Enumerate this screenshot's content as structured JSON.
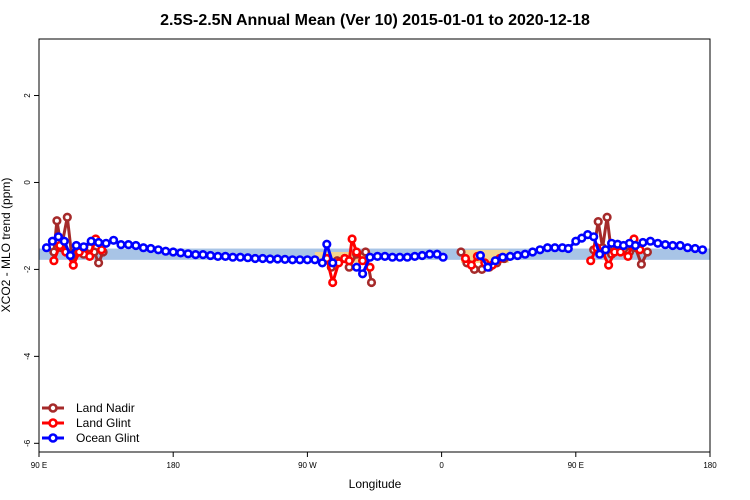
{
  "chart_data": {
    "type": "line",
    "title": "2.5S-2.5N Annual Mean (Ver 10)   2015-01-01 to 2020-12-18",
    "xlabel": "Longitude",
    "ylabel": "XCO2 - MLO trend (ppm)",
    "xlim": [
      0,
      450
    ],
    "ylim": [
      -6.2,
      3.3
    ],
    "x_ticks": [
      {
        "value": 0,
        "label": "90 E"
      },
      {
        "value": 90,
        "label": "180"
      },
      {
        "value": 180,
        "label": "90 W"
      },
      {
        "value": 270,
        "label": "0"
      },
      {
        "value": 360,
        "label": "90 E"
      },
      {
        "value": 450,
        "label": "180"
      }
    ],
    "y_ticks": [
      {
        "value": 2,
        "label": "2"
      },
      {
        "value": 0,
        "label": "0"
      },
      {
        "value": -2,
        "label": "-2"
      },
      {
        "value": -4,
        "label": "-4"
      },
      {
        "value": -6,
        "label": "-6"
      }
    ],
    "bands": [
      {
        "name": "ocean-band",
        "color": "#a8c4e6",
        "x_start": 0,
        "x_end": 450,
        "y_low": -1.78,
        "y_high": -1.52
      },
      {
        "name": "land-band-south-america",
        "color": "#f5d58c",
        "x_start": 185,
        "x_end": 220,
        "y_low": -1.85,
        "y_high": -1.6
      },
      {
        "name": "land-band-africa",
        "color": "#f5d58c",
        "x_start": 283,
        "x_end": 315,
        "y_low": -1.85,
        "y_high": -1.55
      }
    ],
    "series": [
      {
        "name": "Land Nadir",
        "color": "#a52a2a",
        "segments": [
          [
            [
              10,
              -1.6
            ],
            [
              12,
              -0.88
            ],
            [
              15,
              -1.5
            ],
            [
              19,
              -0.8
            ],
            [
              22,
              -1.7
            ],
            [
              26,
              -1.6
            ],
            [
              30,
              -1.65
            ],
            [
              34,
              -1.5
            ],
            [
              37,
              -1.6
            ],
            [
              40,
              -1.85
            ],
            [
              43,
              -1.6
            ]
          ],
          [
            [
              196,
              -1.95
            ],
            [
              200,
              -1.8
            ],
            [
              205,
              -1.75
            ],
            [
              208,
              -1.95
            ],
            [
              213,
              -1.65
            ],
            [
              219,
              -1.6
            ],
            [
              223,
              -2.3
            ]
          ],
          [
            [
              283,
              -1.6
            ],
            [
              287,
              -1.85
            ],
            [
              292,
              -2.0
            ],
            [
              297,
              -2.0
            ],
            [
              302,
              -1.95
            ],
            [
              307,
              -1.85
            ],
            [
              312,
              -1.75
            ]
          ],
          [
            [
              372,
              -1.55
            ],
            [
              375,
              -0.9
            ],
            [
              378,
              -1.5
            ],
            [
              381,
              -0.8
            ],
            [
              384,
              -1.65
            ],
            [
              388,
              -1.5
            ],
            [
              392,
              -1.55
            ],
            [
              396,
              -1.6
            ],
            [
              400,
              -1.5
            ],
            [
              404,
              -1.88
            ],
            [
              408,
              -1.6
            ]
          ]
        ]
      },
      {
        "name": "Land Glint",
        "color": "#ff0000",
        "segments": [
          [
            [
              10,
              -1.8
            ],
            [
              14,
              -1.45
            ],
            [
              18,
              -1.6
            ],
            [
              23,
              -1.9
            ],
            [
              27,
              -1.6
            ],
            [
              30,
              -1.5
            ],
            [
              34,
              -1.7
            ],
            [
              38,
              -1.3
            ],
            [
              42,
              -1.55
            ]
          ],
          [
            [
              193,
              -1.75
            ],
            [
              197,
              -2.3
            ],
            [
              201,
              -1.85
            ],
            [
              205,
              -1.75
            ],
            [
              208,
              -1.8
            ],
            [
              210,
              -1.3
            ],
            [
              213,
              -1.6
            ],
            [
              217,
              -1.8
            ],
            [
              222,
              -1.95
            ]
          ],
          [
            [
              286,
              -1.75
            ],
            [
              290,
              -1.9
            ],
            [
              294,
              -1.7
            ],
            [
              299,
              -1.85
            ],
            [
              304,
              -1.9
            ],
            [
              309,
              -1.75
            ]
          ],
          [
            [
              370,
              -1.8
            ],
            [
              374,
              -1.5
            ],
            [
              378,
              -1.6
            ],
            [
              382,
              -1.9
            ],
            [
              386,
              -1.6
            ],
            [
              390,
              -1.6
            ],
            [
              395,
              -1.7
            ],
            [
              399,
              -1.3
            ],
            [
              403,
              -1.55
            ]
          ]
        ]
      },
      {
        "name": "Ocean Glint",
        "color": "#0000ff",
        "segments": [
          [
            [
              5,
              -1.5
            ],
            [
              9,
              -1.35
            ],
            [
              13,
              -1.25
            ],
            [
              17,
              -1.35
            ],
            [
              21,
              -1.68
            ],
            [
              25,
              -1.45
            ],
            [
              30,
              -1.48
            ],
            [
              35,
              -1.35
            ],
            [
              40,
              -1.38
            ],
            [
              45,
              -1.4
            ],
            [
              50,
              -1.33
            ],
            [
              55,
              -1.43
            ],
            [
              60,
              -1.43
            ],
            [
              65,
              -1.45
            ],
            [
              70,
              -1.5
            ],
            [
              75,
              -1.52
            ],
            [
              80,
              -1.55
            ],
            [
              85,
              -1.58
            ],
            [
              90,
              -1.6
            ],
            [
              95,
              -1.62
            ],
            [
              100,
              -1.64
            ],
            [
              105,
              -1.66
            ],
            [
              110,
              -1.66
            ],
            [
              115,
              -1.68
            ],
            [
              120,
              -1.7
            ],
            [
              125,
              -1.7
            ],
            [
              130,
              -1.72
            ],
            [
              135,
              -1.72
            ],
            [
              140,
              -1.73
            ],
            [
              145,
              -1.75
            ],
            [
              150,
              -1.75
            ],
            [
              155,
              -1.76
            ],
            [
              160,
              -1.76
            ],
            [
              165,
              -1.77
            ],
            [
              170,
              -1.78
            ],
            [
              175,
              -1.78
            ],
            [
              180,
              -1.78
            ],
            [
              185,
              -1.78
            ],
            [
              190,
              -1.85
            ],
            [
              193,
              -1.42
            ],
            [
              197,
              -1.85
            ]
          ],
          [
            [
              213,
              -1.95
            ],
            [
              217,
              -2.1
            ],
            [
              222,
              -1.72
            ],
            [
              227,
              -1.7
            ],
            [
              232,
              -1.7
            ],
            [
              237,
              -1.72
            ],
            [
              242,
              -1.72
            ],
            [
              247,
              -1.72
            ],
            [
              252,
              -1.7
            ],
            [
              257,
              -1.68
            ],
            [
              262,
              -1.65
            ],
            [
              267,
              -1.65
            ],
            [
              271,
              -1.72
            ]
          ],
          [
            [
              296,
              -1.68
            ],
            [
              301,
              -1.95
            ],
            [
              306,
              -1.8
            ],
            [
              311,
              -1.72
            ],
            [
              316,
              -1.7
            ],
            [
              321,
              -1.68
            ],
            [
              326,
              -1.65
            ],
            [
              331,
              -1.6
            ],
            [
              336,
              -1.55
            ],
            [
              341,
              -1.5
            ],
            [
              346,
              -1.5
            ],
            [
              351,
              -1.5
            ],
            [
              355,
              -1.52
            ],
            [
              360,
              -1.35
            ],
            [
              364,
              -1.28
            ],
            [
              368,
              -1.2
            ],
            [
              372,
              -1.25
            ],
            [
              376,
              -1.65
            ],
            [
              380,
              -1.55
            ],
            [
              384,
              -1.4
            ],
            [
              388,
              -1.42
            ],
            [
              392,
              -1.45
            ],
            [
              396,
              -1.4
            ],
            [
              400,
              -1.45
            ],
            [
              405,
              -1.38
            ],
            [
              410,
              -1.35
            ],
            [
              415,
              -1.4
            ],
            [
              420,
              -1.43
            ],
            [
              425,
              -1.45
            ],
            [
              430,
              -1.45
            ],
            [
              435,
              -1.5
            ],
            [
              440,
              -1.52
            ],
            [
              445,
              -1.55
            ]
          ]
        ]
      }
    ],
    "legend": {
      "position": "bottom-left",
      "entries": [
        {
          "label": "Land Nadir",
          "color": "#a52a2a"
        },
        {
          "label": "Land Glint",
          "color": "#ff0000"
        },
        {
          "label": "Ocean Glint",
          "color": "#0000ff"
        }
      ]
    }
  }
}
